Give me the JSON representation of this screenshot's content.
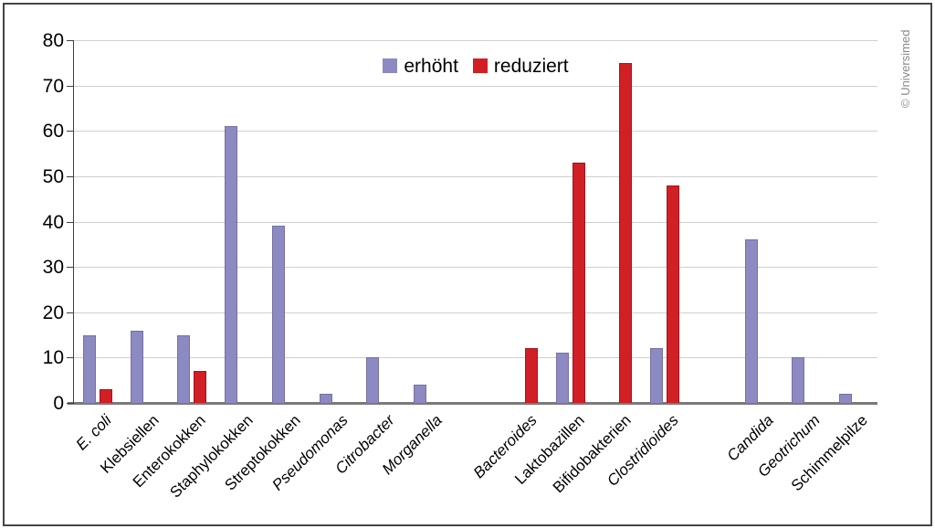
{
  "watermark": {
    "text": "© Universimed",
    "color": "#8a8a8a"
  },
  "frame": {
    "border_color": "#454545",
    "background": "#ffffff"
  },
  "chart_data": {
    "type": "bar",
    "title": "",
    "xlabel": "",
    "ylabel": "",
    "ylim": [
      0,
      80
    ],
    "yticks": [
      0,
      10,
      20,
      30,
      40,
      50,
      60,
      70,
      80
    ],
    "grid": true,
    "legend_position": "top-center",
    "legend": [
      {
        "name": "erhöht",
        "key": "erhoht",
        "color": "#8d89c2"
      },
      {
        "name": "reduziert",
        "key": "reduziert",
        "color": "#d11f26"
      }
    ],
    "colors": {
      "erhoht": "#8d89c2",
      "reduziert": "#d11f26",
      "gridline": "#cfcfcf",
      "baseline": "#7a7a7a",
      "axis": "#3f3f3f"
    },
    "slots_total": 17,
    "categories": [
      {
        "label": "E. coli",
        "italic": true,
        "slot": 0,
        "erhoht": 15,
        "reduziert": 3
      },
      {
        "label": "Klebsiellen",
        "italic": false,
        "slot": 1,
        "erhoht": 16,
        "reduziert": null
      },
      {
        "label": "Enterokokken",
        "italic": false,
        "slot": 2,
        "erhoht": 15,
        "reduziert": 7
      },
      {
        "label": "Staphylokokken",
        "italic": false,
        "slot": 3,
        "erhoht": 61,
        "reduziert": null
      },
      {
        "label": "Streptokokken",
        "italic": false,
        "slot": 4,
        "erhoht": 39,
        "reduziert": null
      },
      {
        "label": "Pseudomonas",
        "italic": true,
        "slot": 5,
        "erhoht": 2,
        "reduziert": null
      },
      {
        "label": "Citrobacter",
        "italic": true,
        "slot": 6,
        "erhoht": 10,
        "reduziert": null
      },
      {
        "label": "Morganella",
        "italic": true,
        "slot": 7,
        "erhoht": 4,
        "reduziert": null
      },
      {
        "label": "Bacteroides",
        "italic": true,
        "slot": 9,
        "erhoht": null,
        "reduziert": 12
      },
      {
        "label": "Laktobazillen",
        "italic": false,
        "slot": 10,
        "erhoht": 11,
        "reduziert": 53
      },
      {
        "label": "Bifidobakterien",
        "italic": false,
        "slot": 11,
        "erhoht": null,
        "reduziert": 75
      },
      {
        "label": "Clostridioides",
        "italic": true,
        "slot": 12,
        "erhoht": 12,
        "reduziert": 48
      },
      {
        "label": "Candida",
        "italic": true,
        "slot": 14,
        "erhoht": 36,
        "reduziert": null
      },
      {
        "label": "Geotrichum",
        "italic": true,
        "slot": 15,
        "erhoht": 10,
        "reduziert": null
      },
      {
        "label": "Schimmelpilze",
        "italic": false,
        "slot": 16,
        "erhoht": 2,
        "reduziert": null
      }
    ]
  }
}
